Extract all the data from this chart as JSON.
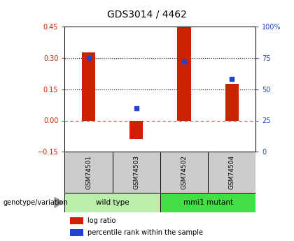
{
  "title": "GDS3014 / 4462",
  "samples": [
    "GSM74501",
    "GSM74503",
    "GSM74502",
    "GSM74504"
  ],
  "log_ratios": [
    0.325,
    -0.09,
    0.45,
    0.175
  ],
  "percentile_ranks": [
    75,
    35,
    72,
    58
  ],
  "groups": [
    {
      "name": "wild type",
      "samples": [
        0,
        1
      ],
      "color": "#bbeeaa"
    },
    {
      "name": "mmi1 mutant",
      "samples": [
        2,
        3
      ],
      "color": "#44dd44"
    }
  ],
  "group_label": "genotype/variation",
  "ylim_left": [
    -0.15,
    0.45
  ],
  "ylim_right": [
    0,
    100
  ],
  "yticks_left": [
    -0.15,
    0.0,
    0.15,
    0.3,
    0.45
  ],
  "yticks_right": [
    0,
    25,
    50,
    75,
    100
  ],
  "hlines": [
    0.0,
    0.15,
    0.3
  ],
  "hline_styles": [
    "dashed",
    "dotted",
    "dotted"
  ],
  "hline_colors": [
    "#cc4444",
    "black",
    "black"
  ],
  "bar_color": "#cc2200",
  "dot_color": "#2244cc",
  "bar_width": 0.28,
  "legend_bar_label": "log ratio",
  "legend_dot_label": "percentile rank within the sample",
  "left_tick_color": "#cc2200",
  "right_tick_color": "#2244cc",
  "background_color": "#ffffff",
  "sample_box_color": "#cccccc",
  "group_box_light": "#bbeeaa",
  "group_box_dark": "#44dd44"
}
